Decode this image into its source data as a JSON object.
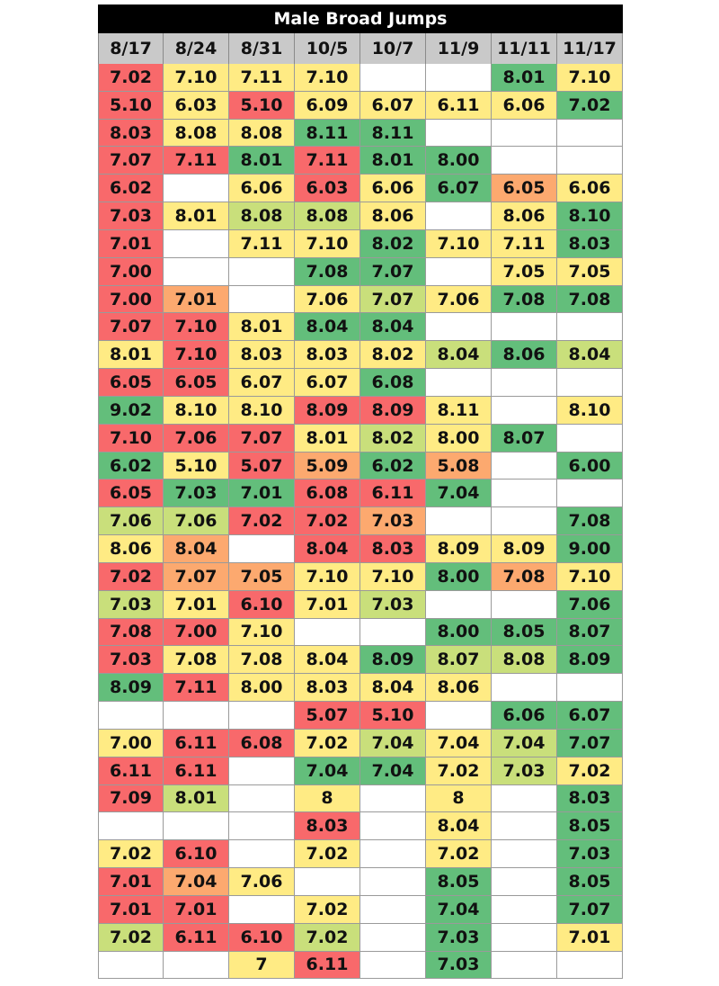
{
  "chart_data": {
    "type": "table",
    "title": "Male Broad Jumps",
    "columns": [
      "8/17",
      "8/24",
      "8/31",
      "10/5",
      "10/7",
      "11/9",
      "11/11",
      "11/17"
    ],
    "rows": [
      [
        "7.02",
        "7.10",
        "7.11",
        "7.10",
        "",
        "",
        "8.01",
        "7.10"
      ],
      [
        "5.10",
        "6.03",
        "5.10",
        "6.09",
        "6.07",
        "6.11",
        "6.06",
        "7.02"
      ],
      [
        "8.03",
        "8.08",
        "8.08",
        "8.11",
        "8.11",
        "",
        "",
        ""
      ],
      [
        "7.07",
        "7.11",
        "8.01",
        "7.11",
        "8.01",
        "8.00",
        "",
        ""
      ],
      [
        "6.02",
        "",
        "6.06",
        "6.03",
        "6.06",
        "6.07",
        "6.05",
        "6.06"
      ],
      [
        "7.03",
        "8.01",
        "8.08",
        "8.08",
        "8.06",
        "",
        "8.06",
        "8.10"
      ],
      [
        "7.01",
        "",
        "7.11",
        "7.10",
        "8.02",
        "7.10",
        "7.11",
        "8.03"
      ],
      [
        "7.00",
        "",
        "",
        "7.08",
        "7.07",
        "",
        "7.05",
        "7.05"
      ],
      [
        "7.00",
        "7.01",
        "",
        "7.06",
        "7.07",
        "7.06",
        "7.08",
        "7.08"
      ],
      [
        "7.07",
        "7.10",
        "8.01",
        "8.04",
        "8.04",
        "",
        "",
        ""
      ],
      [
        "8.01",
        "7.10",
        "8.03",
        "8.03",
        "8.02",
        "8.04",
        "8.06",
        "8.04"
      ],
      [
        "6.05",
        "6.05",
        "6.07",
        "6.07",
        "6.08",
        "",
        "",
        ""
      ],
      [
        "9.02",
        "8.10",
        "8.10",
        "8.09",
        "8.09",
        "8.11",
        "",
        "8.10"
      ],
      [
        "7.10",
        "7.06",
        "7.07",
        "8.01",
        "8.02",
        "8.00",
        "8.07",
        ""
      ],
      [
        "6.02",
        "5.10",
        "5.07",
        "5.09",
        "6.02",
        "5.08",
        "",
        "6.00"
      ],
      [
        "6.05",
        "7.03",
        "7.01",
        "6.08",
        "6.11",
        "7.04",
        "",
        ""
      ],
      [
        "7.06",
        "7.06",
        "7.02",
        "7.02",
        "7.03",
        "",
        "",
        "7.08"
      ],
      [
        "8.06",
        "8.04",
        "",
        "8.04",
        "8.03",
        "8.09",
        "8.09",
        "9.00"
      ],
      [
        "7.02",
        "7.07",
        "7.05",
        "7.10",
        "7.10",
        "8.00",
        "7.08",
        "7.10"
      ],
      [
        "7.03",
        "7.01",
        "6.10",
        "7.01",
        "7.03",
        "",
        "",
        "7.06"
      ],
      [
        "7.08",
        "7.00",
        "7.10",
        "",
        "",
        "8.00",
        "8.05",
        "8.07"
      ],
      [
        "7.03",
        "7.08",
        "7.08",
        "8.04",
        "8.09",
        "8.07",
        "8.08",
        "8.09"
      ],
      [
        "8.09",
        "7.11",
        "8.00",
        "8.03",
        "8.04",
        "8.06",
        "",
        ""
      ],
      [
        "",
        "",
        "",
        "5.07",
        "5.10",
        "",
        "6.06",
        "6.07"
      ],
      [
        "7.00",
        "6.11",
        "6.08",
        "7.02",
        "7.04",
        "7.04",
        "7.04",
        "7.07"
      ],
      [
        "6.11",
        "6.11",
        "",
        "7.04",
        "7.04",
        "7.02",
        "7.03",
        "7.02"
      ],
      [
        "7.09",
        "8.01",
        "",
        "8",
        "",
        "8",
        "",
        "8.03"
      ],
      [
        "",
        "",
        "",
        "8.03",
        "",
        "8.04",
        "",
        "8.05"
      ],
      [
        "7.02",
        "6.10",
        "",
        "7.02",
        "",
        "7.02",
        "",
        "7.03"
      ],
      [
        "7.01",
        "7.04",
        "7.06",
        "",
        "",
        "8.05",
        "",
        "8.05"
      ],
      [
        "7.01",
        "7.01",
        "",
        "7.02",
        "",
        "7.04",
        "",
        "7.07"
      ],
      [
        "7.02",
        "6.11",
        "6.10",
        "7.02",
        "",
        "7.03",
        "",
        "7.01"
      ],
      [
        "",
        "",
        "7",
        "6.11",
        "",
        "7.03",
        "",
        ""
      ]
    ],
    "cell_colors": [
      [
        "r",
        "y",
        "y",
        "y",
        "",
        "",
        "g",
        "y"
      ],
      [
        "r",
        "y",
        "r",
        "y",
        "y",
        "y",
        "y",
        "g"
      ],
      [
        "r",
        "y",
        "y",
        "g",
        "g",
        "",
        "",
        ""
      ],
      [
        "r",
        "r",
        "g",
        "r",
        "g",
        "g",
        "",
        ""
      ],
      [
        "r",
        "",
        "y",
        "r",
        "y",
        "g",
        "o",
        "y"
      ],
      [
        "r",
        "y",
        "lg",
        "lg",
        "y",
        "",
        "y",
        "g"
      ],
      [
        "r",
        "",
        "y",
        "y",
        "g",
        "y",
        "y",
        "g"
      ],
      [
        "r",
        "",
        "",
        "g",
        "g",
        "",
        "y",
        "y"
      ],
      [
        "r",
        "o",
        "",
        "y",
        "lg",
        "y",
        "g",
        "g"
      ],
      [
        "r",
        "r",
        "y",
        "g",
        "g",
        "",
        "",
        ""
      ],
      [
        "y",
        "r",
        "y",
        "y",
        "y",
        "lg",
        "g",
        "lg"
      ],
      [
        "r",
        "r",
        "y",
        "y",
        "g",
        "",
        "",
        ""
      ],
      [
        "g",
        "y",
        "y",
        "r",
        "r",
        "y",
        "",
        "y"
      ],
      [
        "r",
        "r",
        "r",
        "y",
        "lg",
        "y",
        "g",
        ""
      ],
      [
        "g",
        "y",
        "r",
        "o",
        "g",
        "o",
        "",
        "g"
      ],
      [
        "r",
        "g",
        "g",
        "r",
        "r",
        "g",
        "",
        ""
      ],
      [
        "lg",
        "lg",
        "r",
        "r",
        "o",
        "",
        "",
        "g"
      ],
      [
        "y",
        "o",
        "",
        "r",
        "r",
        "y",
        "y",
        "g"
      ],
      [
        "r",
        "o",
        "o",
        "y",
        "y",
        "g",
        "o",
        "y"
      ],
      [
        "lg",
        "y",
        "r",
        "y",
        "lg",
        "",
        "",
        "g"
      ],
      [
        "r",
        "r",
        "y",
        "",
        "",
        "g",
        "g",
        "g"
      ],
      [
        "r",
        "y",
        "y",
        "y",
        "g",
        "lg",
        "lg",
        "g"
      ],
      [
        "g",
        "r",
        "y",
        "y",
        "y",
        "y",
        "",
        ""
      ],
      [
        "",
        "",
        "",
        "r",
        "r",
        "",
        "g",
        "g"
      ],
      [
        "y",
        "r",
        "r",
        "y",
        "lg",
        "y",
        "lg",
        "g"
      ],
      [
        "r",
        "r",
        "",
        "g",
        "g",
        "y",
        "lg",
        "y"
      ],
      [
        "r",
        "lg",
        "",
        "y",
        "",
        "y",
        "",
        "g"
      ],
      [
        "",
        "",
        "",
        "r",
        "",
        "y",
        "",
        "g"
      ],
      [
        "y",
        "r",
        "",
        "y",
        "",
        "y",
        "",
        "g"
      ],
      [
        "r",
        "o",
        "y",
        "",
        "",
        "g",
        "",
        "g"
      ],
      [
        "r",
        "r",
        "",
        "y",
        "",
        "g",
        "",
        "g"
      ],
      [
        "lg",
        "r",
        "r",
        "lg",
        "",
        "g",
        "",
        "y"
      ],
      [
        "",
        "",
        "y",
        "r",
        "",
        "g",
        "",
        ""
      ]
    ],
    "palette": {
      "r": "#f8696b",
      "o": "#fca96f",
      "y": "#ffeb84",
      "lg": "#c9df7b",
      "g": "#63be7b",
      "": "#ffffff"
    }
  }
}
